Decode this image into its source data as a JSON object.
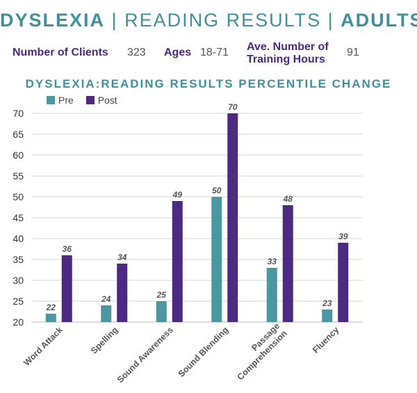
{
  "header": {
    "part1": "DYSLEXIA",
    "sep1": "|",
    "part2": "READING RESULTS",
    "sep2": "|",
    "part3": "ADULTS"
  },
  "stats": {
    "clients_label": "Number of Clients",
    "clients_value": "323",
    "ages_label": "Ages",
    "ages_value": "18-71",
    "hours_label_line1": "Ave. Number of",
    "hours_label_line2": "Training Hours",
    "hours_value": "91"
  },
  "colors": {
    "pre": "#4a97a1",
    "post": "#4b2a7f",
    "title": "#3f8f9c",
    "label": "#4a2a7e"
  },
  "chart_data": {
    "type": "bar",
    "title": "DYSLEXIA:READING RESULTS PERCENTILE CHANGE",
    "categories": [
      "Word Attack",
      "Spelling",
      "Sound Awareness",
      "Sound Blending",
      "Passage Comprehension",
      "Fluency"
    ],
    "category_lines": [
      [
        "Word Attack"
      ],
      [
        "Spelling"
      ],
      [
        "Sound Awareness"
      ],
      [
        "Sound Blending"
      ],
      [
        "Passage",
        "Comprehension"
      ],
      [
        "Fluency"
      ]
    ],
    "series": [
      {
        "name": "Pre",
        "values": [
          22,
          24,
          25,
          50,
          33,
          23
        ]
      },
      {
        "name": "Post",
        "values": [
          36,
          34,
          49,
          70,
          48,
          39
        ]
      }
    ],
    "yticks": [
      20,
      25,
      30,
      35,
      40,
      45,
      50,
      55,
      60,
      65,
      70
    ],
    "ylim": [
      20,
      70
    ],
    "grid": true,
    "legend_position": "top-left"
  }
}
